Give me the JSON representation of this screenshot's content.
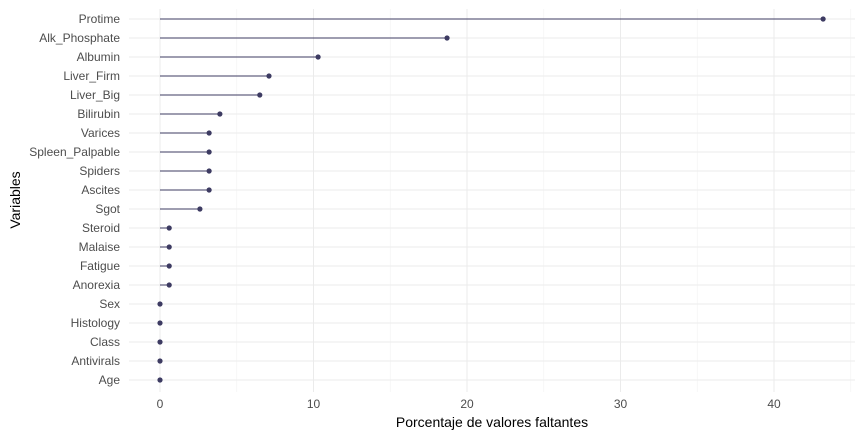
{
  "chart_data": {
    "type": "lollipop",
    "title": "",
    "xlabel": "Porcentaje de valores faltantes",
    "ylabel": "Variables",
    "xlim": [
      -2,
      45
    ],
    "xticks": [
      0,
      10,
      20,
      30,
      40
    ],
    "grid": true,
    "legend": "none",
    "color": "#3d3b62",
    "categories": [
      "Protime",
      "Alk_Phosphate",
      "Albumin",
      "Liver_Firm",
      "Liver_Big",
      "Bilirubin",
      "Varices",
      "Spleen_Palpable",
      "Spiders",
      "Ascites",
      "Sgot",
      "Steroid",
      "Malaise",
      "Fatigue",
      "Anorexia",
      "Sex",
      "Histology",
      "Class",
      "Antivirals",
      "Age"
    ],
    "values": [
      43.2,
      18.7,
      10.3,
      7.1,
      6.5,
      3.9,
      3.2,
      3.2,
      3.2,
      3.2,
      2.6,
      0.6,
      0.6,
      0.6,
      0.6,
      0.0,
      0.0,
      0.0,
      0.0,
      0.0
    ]
  }
}
